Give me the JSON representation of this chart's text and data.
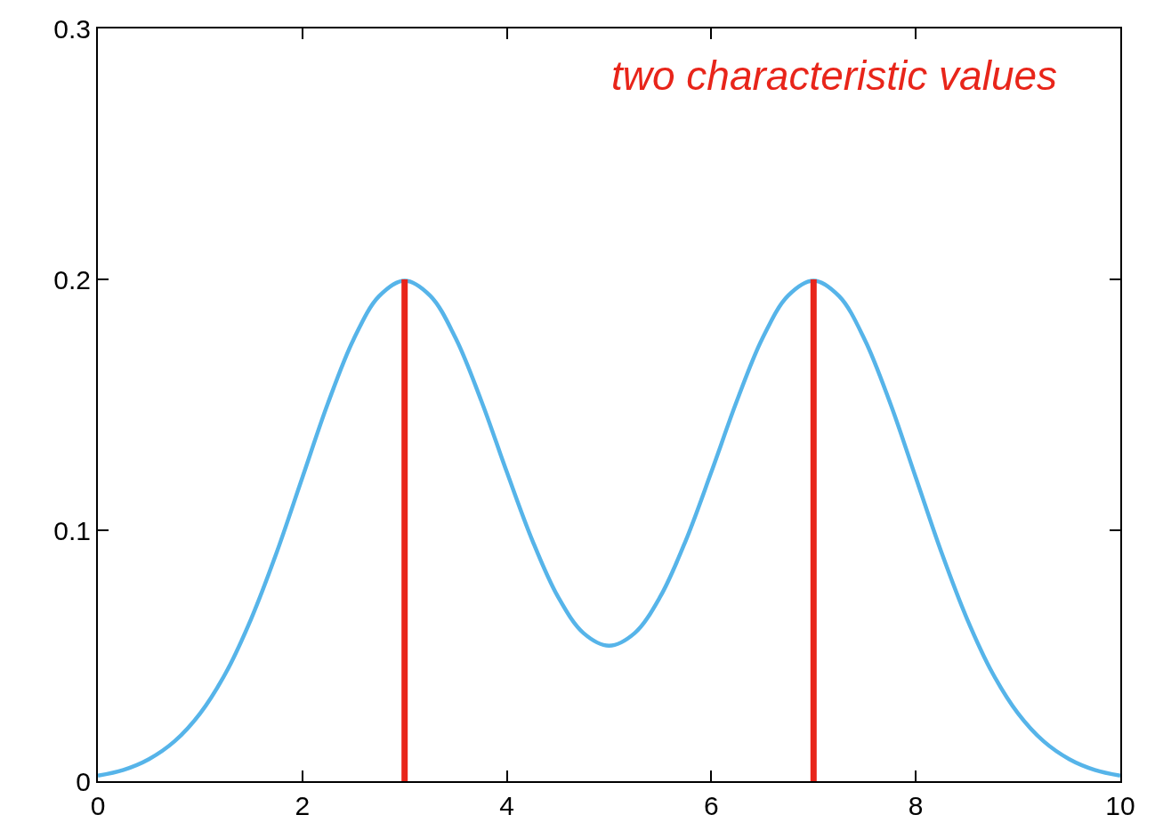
{
  "chart_data": {
    "type": "line",
    "annotations": [
      "two characteristic values"
    ],
    "series": [
      {
        "color": "#56b4e9",
        "x": [
          0,
          0.25,
          0.5,
          0.75,
          1,
          1.25,
          1.5,
          1.75,
          2,
          2.25,
          2.5,
          2.75,
          3,
          3.25,
          3.5,
          3.75,
          4,
          4.25,
          4.5,
          4.75,
          5,
          5.25,
          5.5,
          5.75,
          6,
          6.25,
          6.5,
          6.75,
          7,
          7.25,
          7.5,
          7.75,
          8,
          8.25,
          8.5,
          8.75,
          9,
          9.25,
          9.5,
          9.75,
          10
        ],
        "values": [
          0.0022,
          0.0045,
          0.0088,
          0.0159,
          0.027,
          0.0431,
          0.0648,
          0.0913,
          0.121,
          0.1506,
          0.176,
          0.1933,
          0.1995,
          0.1935,
          0.1765,
          0.1516,
          0.1232,
          0.0959,
          0.0735,
          0.059,
          0.054,
          0.059,
          0.0735,
          0.0959,
          0.1232,
          0.1516,
          0.1765,
          0.1935,
          0.1995,
          0.1933,
          0.176,
          0.1506,
          0.121,
          0.0913,
          0.0648,
          0.0431,
          0.027,
          0.0159,
          0.0088,
          0.0045,
          0.0022
        ]
      },
      {
        "color": "#e8251a",
        "x": [
          3,
          3
        ],
        "values": [
          0,
          0.2
        ]
      },
      {
        "color": "#e8251a",
        "x": [
          7,
          7
        ],
        "values": [
          0,
          0.2
        ]
      }
    ],
    "xlim": [
      0,
      10
    ],
    "ylim": [
      0,
      0.3
    ],
    "xticks": [
      0,
      2,
      4,
      6,
      8,
      10
    ],
    "yticks": [
      0,
      0.1,
      0.2,
      0.3
    ],
    "grid": false
  }
}
